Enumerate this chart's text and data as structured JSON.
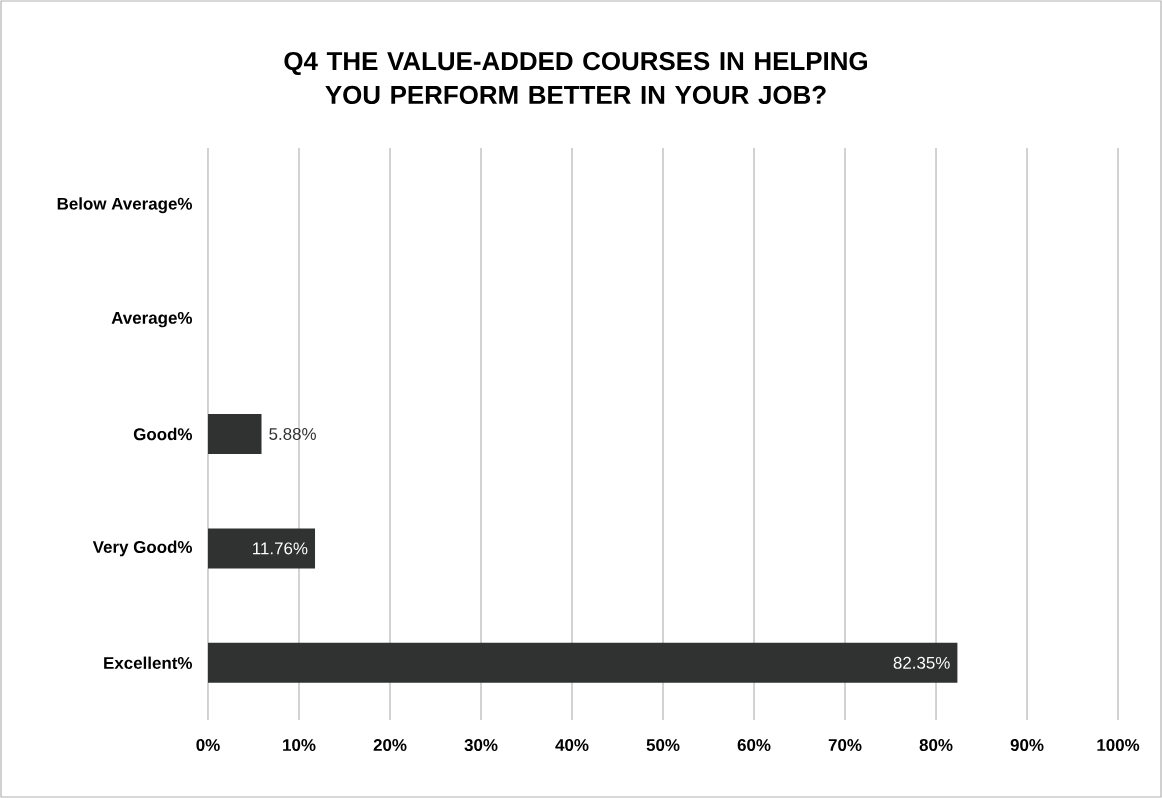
{
  "chart_data": {
    "type": "bar",
    "orientation": "horizontal",
    "title": "Q4 THE VALUE-ADDED COURSES IN HELPING YOU PERFORM BETTER IN YOUR JOB?",
    "categories": [
      "Below Average%",
      "Average%",
      "Good%",
      "Very Good%",
      "Excellent%"
    ],
    "values": [
      0,
      0,
      5.88,
      11.76,
      82.35
    ],
    "value_labels": [
      null,
      null,
      "5.88%",
      "11.76%",
      "82.35%"
    ],
    "color": "#2f3230",
    "xlim": [
      0,
      100
    ],
    "xticks": [
      {
        "value": 0,
        "label": "0%"
      },
      {
        "value": 10,
        "label": "10%"
      },
      {
        "value": 20,
        "label": "20%"
      },
      {
        "value": 30,
        "label": "30%"
      },
      {
        "value": 40,
        "label": "40%"
      },
      {
        "value": 50,
        "label": "50%"
      },
      {
        "value": 60,
        "label": "60%"
      },
      {
        "value": 70,
        "label": "70%"
      },
      {
        "value": 80,
        "label": "80%"
      },
      {
        "value": 90,
        "label": "90%"
      },
      {
        "value": 100,
        "label": "100%"
      }
    ],
    "grid": "x"
  }
}
